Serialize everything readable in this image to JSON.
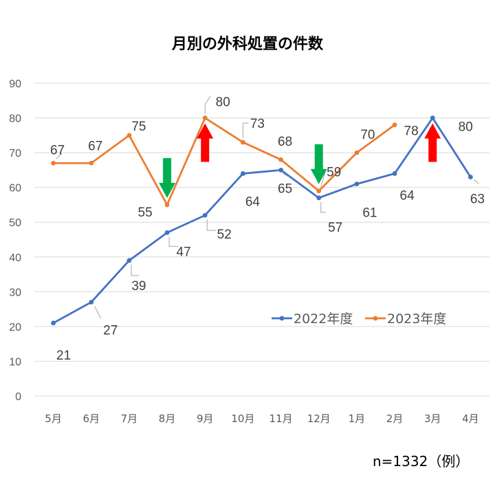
{
  "chart_data": {
    "type": "line",
    "title": "月別の外科処置の件数",
    "categories": [
      "5月",
      "6月",
      "7月",
      "8月",
      "9月",
      "10月",
      "11月",
      "12月",
      "1月",
      "2月",
      "3月",
      "4月"
    ],
    "ylim": [
      0,
      90
    ],
    "yticks": [
      0,
      10,
      20,
      30,
      40,
      50,
      60,
      70,
      80,
      90
    ],
    "grid": true,
    "legend_position": "right",
    "series": [
      {
        "name": "2022年度",
        "color": "#4472C4",
        "values": [
          21,
          27,
          39,
          47,
          52,
          64,
          65,
          57,
          61,
          64,
          80,
          63
        ]
      },
      {
        "name": "2023年度",
        "color": "#ED7D31",
        "values": [
          67,
          67,
          75,
          55,
          80,
          73,
          68,
          59,
          70,
          78,
          null,
          null
        ]
      }
    ],
    "annotations": [
      {
        "type": "arrow-down",
        "color": "#00B050",
        "category": "8月"
      },
      {
        "type": "arrow-up",
        "color": "#FF0000",
        "category": "9月"
      },
      {
        "type": "arrow-down",
        "color": "#00B050",
        "category": "12月"
      },
      {
        "type": "arrow-up",
        "color": "#FF0000",
        "category": "3月"
      }
    ],
    "footnote": "n=1332（例）"
  }
}
